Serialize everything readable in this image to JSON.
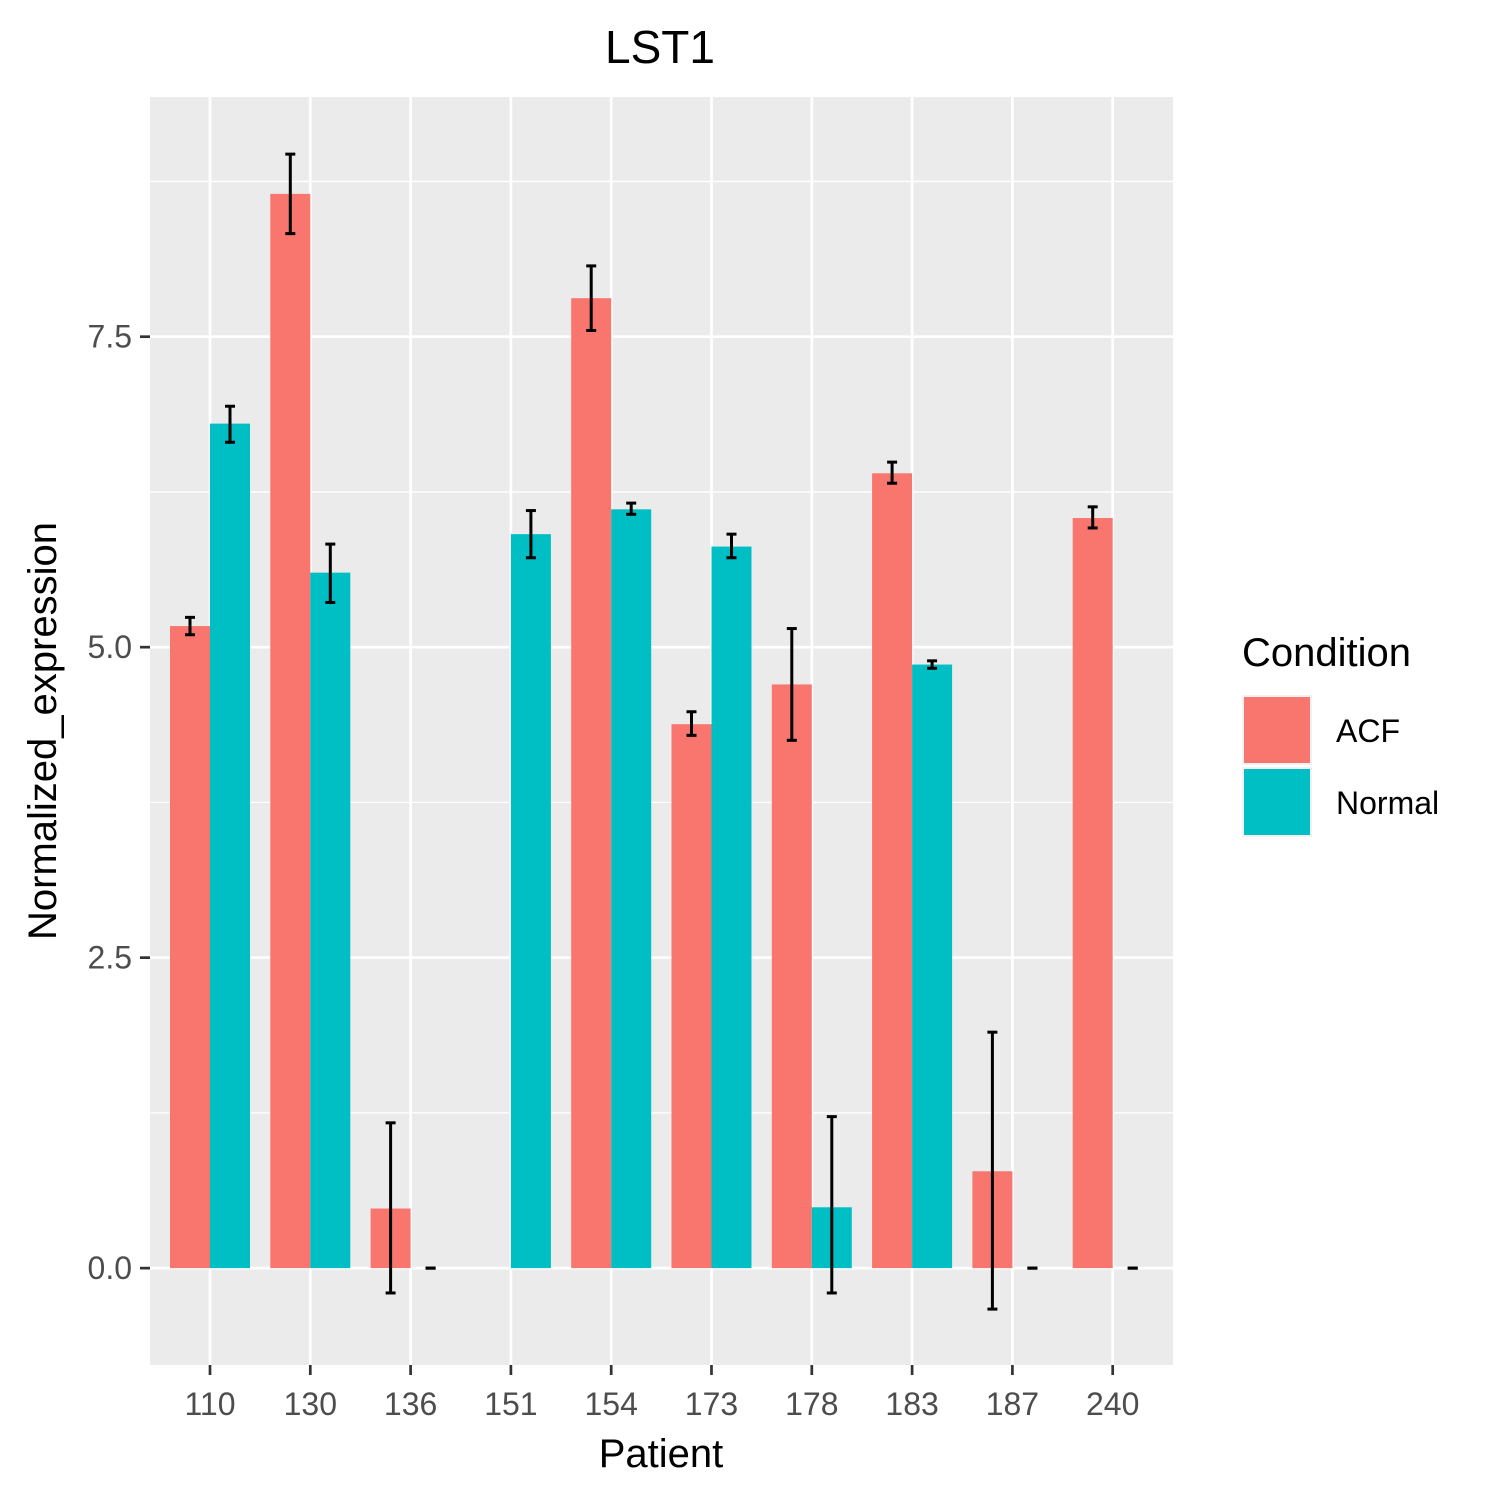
{
  "chart_data": {
    "type": "bar",
    "title": "LST1",
    "xlabel": "Patient",
    "ylabel": "Normalized_expression",
    "categories": [
      "110",
      "130",
      "136",
      "151",
      "154",
      "173",
      "178",
      "183",
      "187",
      "240"
    ],
    "series": [
      {
        "name": "ACF",
        "color": "#F8766D",
        "values": [
          5.17,
          8.65,
          0.48,
          null,
          7.81,
          4.38,
          4.7,
          6.4,
          0.78,
          6.04
        ],
        "error_low": [
          5.1,
          8.33,
          -0.2,
          null,
          7.55,
          4.29,
          4.25,
          6.32,
          -0.33,
          5.96
        ],
        "error_high": [
          5.24,
          8.97,
          1.17,
          null,
          8.07,
          4.48,
          5.15,
          6.49,
          1.9,
          6.13
        ]
      },
      {
        "name": "Normal",
        "color": "#00BFC4",
        "values": [
          6.8,
          5.6,
          0.0,
          5.91,
          6.11,
          5.81,
          0.49,
          4.86,
          0.0,
          0.0
        ],
        "error_low": [
          6.65,
          5.36,
          0.0,
          5.72,
          6.07,
          5.72,
          -0.2,
          4.83,
          0.0,
          0.0
        ],
        "error_high": [
          6.94,
          5.83,
          0.0,
          6.1,
          6.16,
          5.91,
          1.22,
          4.89,
          0.0,
          0.0
        ]
      }
    ],
    "ylim": [
      -0.78,
      9.43
    ],
    "yticks": [
      0.0,
      2.5,
      5.0,
      7.5
    ],
    "ytick_labels": [
      "0.0",
      "2.5",
      "5.0",
      "7.5"
    ],
    "grid": true,
    "panel_background": "#EBEBEB",
    "legend": {
      "title": "Condition",
      "position": "right",
      "entries": [
        "ACF",
        "Normal"
      ]
    }
  }
}
